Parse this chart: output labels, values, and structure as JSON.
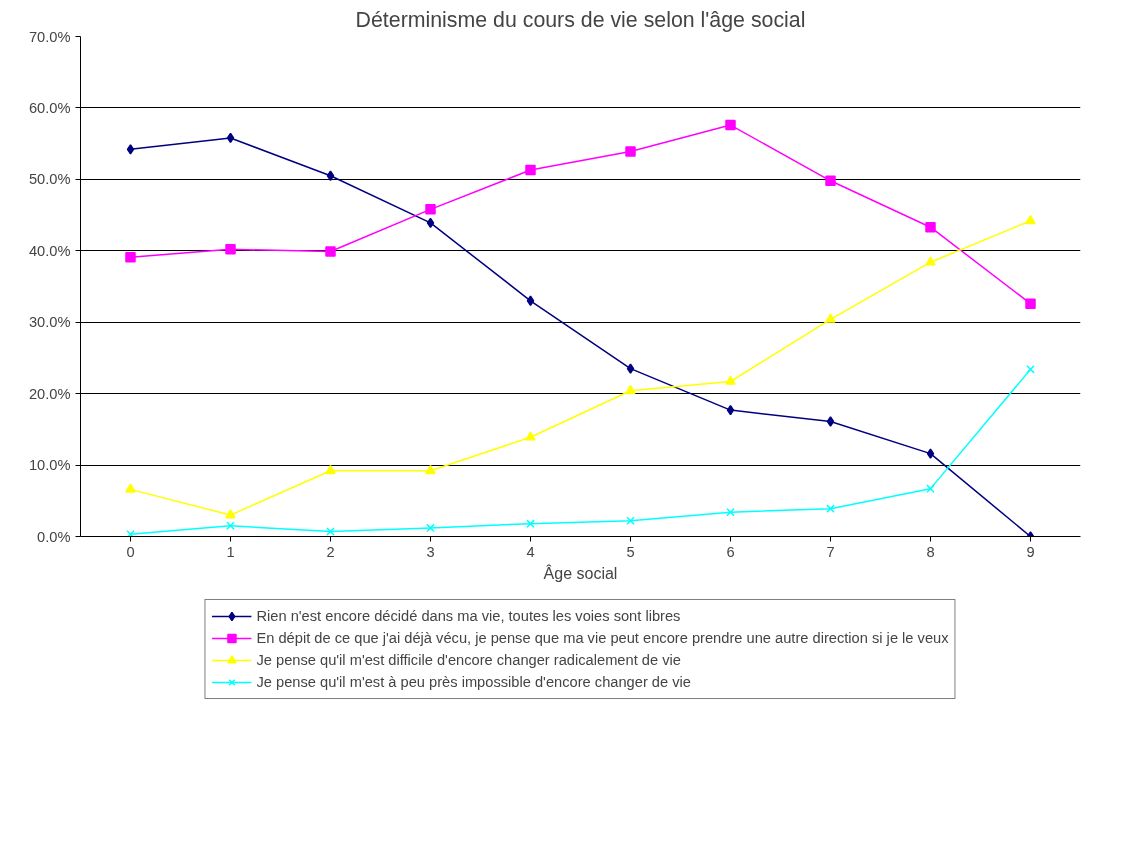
{
  "chart_data": {
    "type": "line",
    "title": "Déterminisme du cours de vie selon l'âge social",
    "xlabel": "Âge social",
    "categories": [
      "0",
      "1",
      "2",
      "3",
      "4",
      "5",
      "6",
      "7",
      "8",
      "9"
    ],
    "series": [
      {
        "name": "Rien n'est encore décidé dans ma vie, toutes les voies sont libres",
        "color": "#000080",
        "marker": "diamond",
        "values": [
          54.2,
          55.8,
          50.5,
          43.9,
          33.0,
          23.5,
          17.7,
          16.1,
          11.6,
          0.0
        ]
      },
      {
        "name": "En dépit de ce que j'ai déjà vécu, je pense que ma vie peut encore prendre une autre direction si je le veux",
        "color": "#ff00ff",
        "marker": "square",
        "values": [
          39.1,
          40.2,
          39.9,
          45.8,
          51.3,
          53.9,
          57.6,
          49.8,
          43.3,
          32.6
        ]
      },
      {
        "name": "Je pense qu'il m'est difficile d'encore changer radicalement de vie",
        "color": "#ffff00",
        "marker": "triangle",
        "values": [
          6.6,
          3.0,
          9.2,
          9.2,
          13.9,
          20.4,
          21.7,
          30.4,
          38.4,
          44.2
        ]
      },
      {
        "name": "Je pense qu'il m'est à peu près impossible d'encore changer de vie",
        "color": "#00ffff",
        "marker": "cross",
        "values": [
          0.3,
          1.5,
          0.7,
          1.2,
          1.8,
          2.2,
          3.4,
          3.9,
          6.7,
          23.4
        ]
      }
    ],
    "ylim": [
      0,
      70
    ],
    "yticks": [
      {
        "value": 0,
        "label": "0.0%"
      },
      {
        "value": 10,
        "label": "10.0%"
      },
      {
        "value": 20,
        "label": "20.0%"
      },
      {
        "value": 30,
        "label": "30.0%"
      },
      {
        "value": 40,
        "label": "40.0%"
      },
      {
        "value": 50,
        "label": "50.0%"
      },
      {
        "value": 60,
        "label": "60.0%"
      },
      {
        "value": 70,
        "label": "70.0%"
      }
    ],
    "grid": "y",
    "legend": "bottom",
    "line_style": "solid"
  }
}
